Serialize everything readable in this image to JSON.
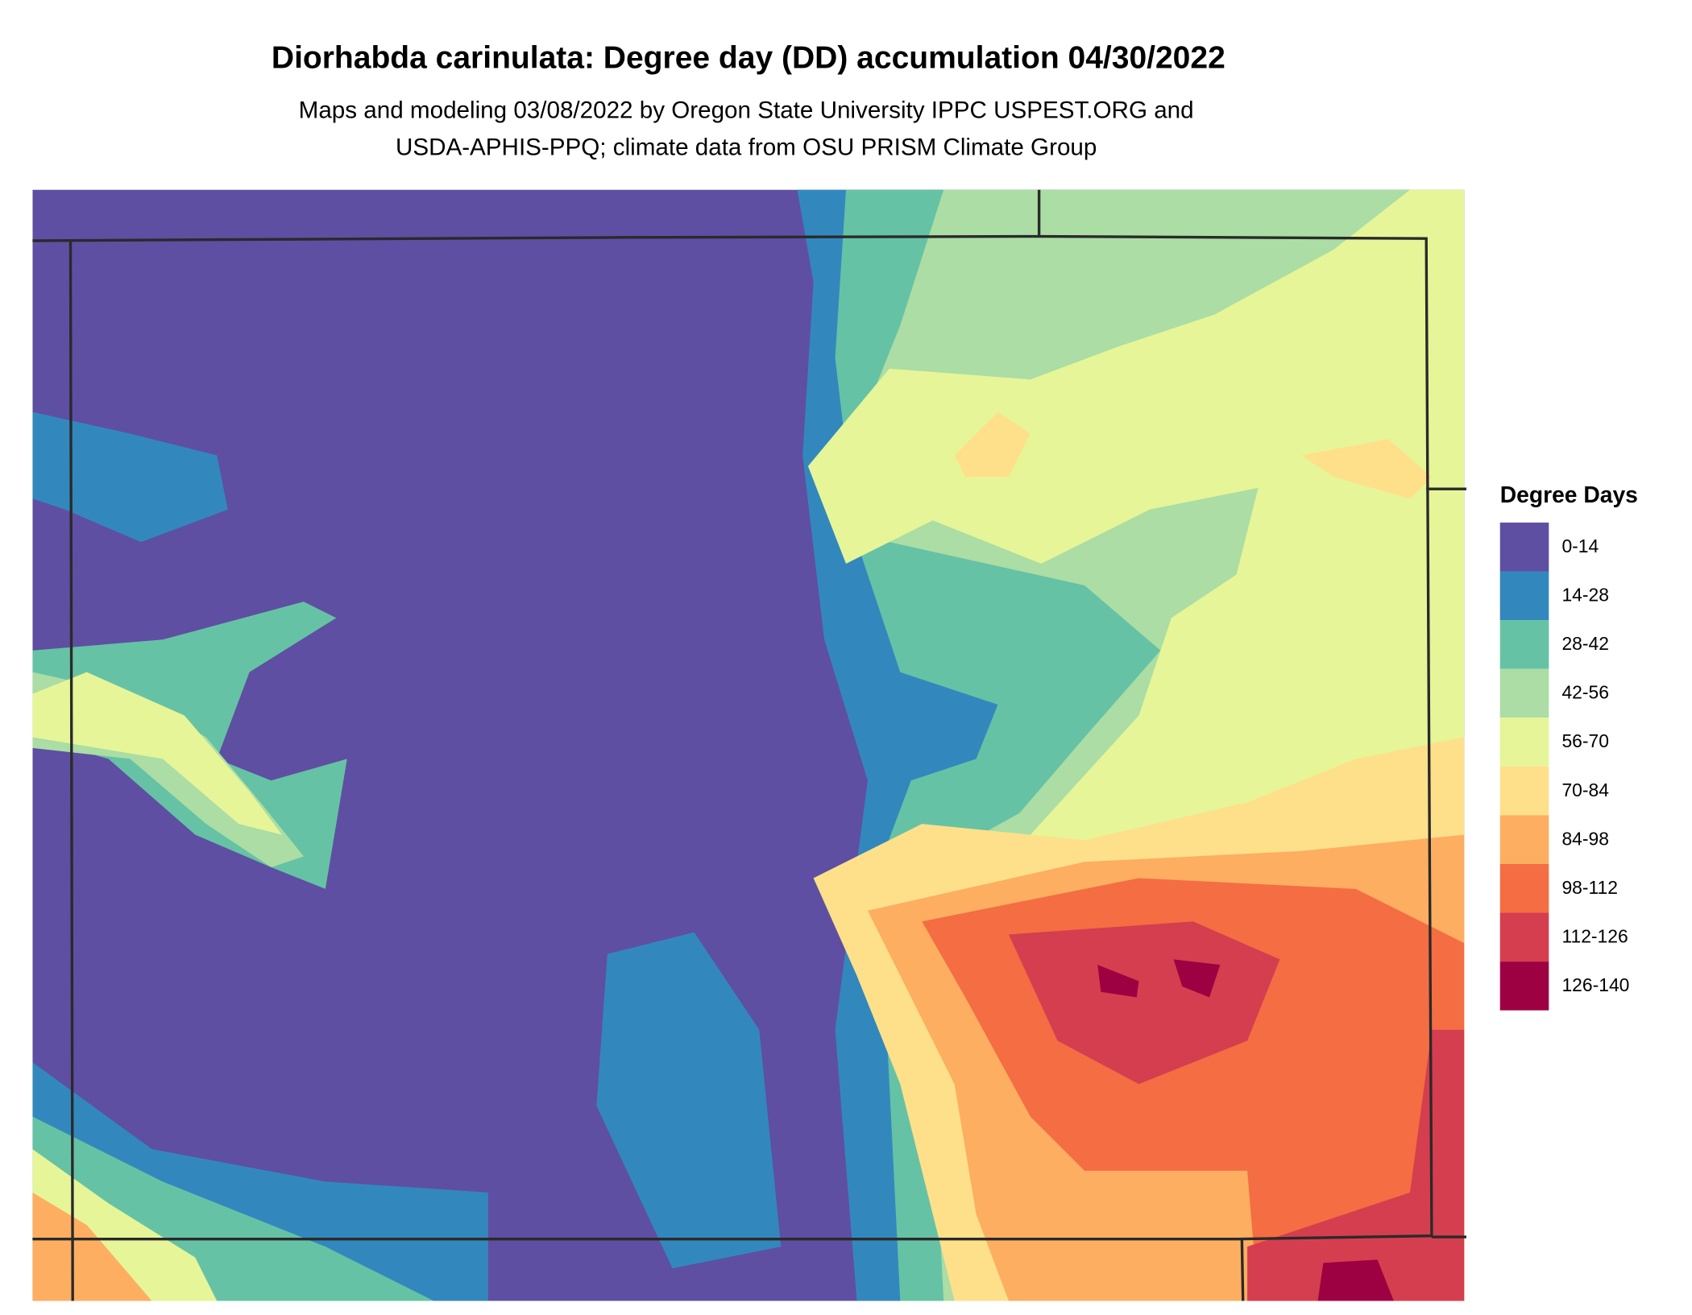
{
  "title": "Diorhabda carinulata: Degree day (DD) accumulation 04/30/2022",
  "subtitle": [
    "Maps and modeling 03/08/2022 by Oregon State University IPPC USPEST.ORG and",
    "USDA-APHIS-PPQ; climate data from OSU PRISM Climate Group"
  ],
  "legend": {
    "title": "Degree Days",
    "items": [
      {
        "label": "0-14",
        "color": "#5e4fa2"
      },
      {
        "label": "14-28",
        "color": "#3288bd"
      },
      {
        "label": "28-42",
        "color": "#66c2a5"
      },
      {
        "label": "42-56",
        "color": "#abdda4"
      },
      {
        "label": "56-70",
        "color": "#e6f598"
      },
      {
        "label": "70-84",
        "color": "#fee08b"
      },
      {
        "label": "84-98",
        "color": "#fdae61"
      },
      {
        "label": "98-112",
        "color": "#f46d43"
      },
      {
        "label": "112-126",
        "color": "#d53e4f"
      },
      {
        "label": "126-140",
        "color": "#9e0142"
      }
    ]
  }
}
